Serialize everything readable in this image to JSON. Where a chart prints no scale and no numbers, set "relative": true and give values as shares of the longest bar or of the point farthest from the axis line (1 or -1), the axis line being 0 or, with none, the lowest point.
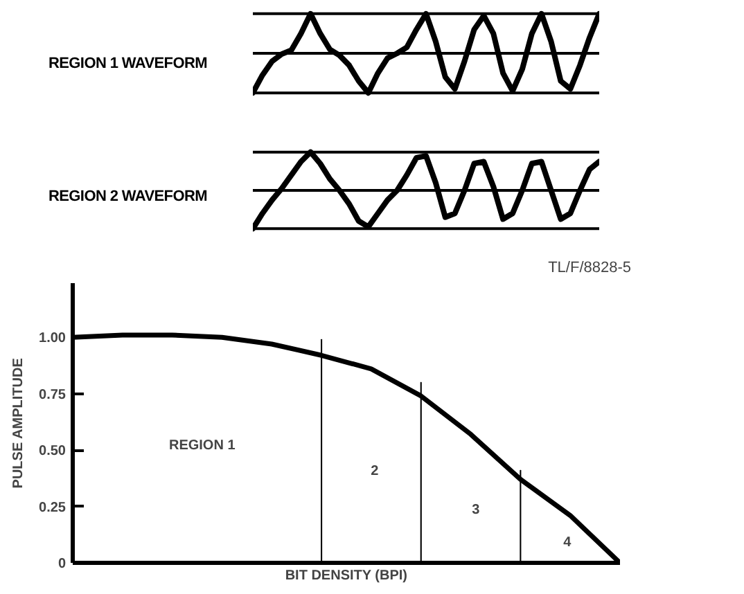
{
  "chart_data": [
    {
      "type": "line",
      "title": "REGION 1 WAVEFORM",
      "relative": true,
      "categories": [
        null,
        null,
        null,
        null,
        null,
        null,
        null,
        null,
        null,
        null,
        null,
        null,
        null,
        null,
        null,
        null,
        null,
        null,
        null,
        null,
        null,
        null,
        null,
        null,
        null,
        null,
        null,
        null,
        null,
        null,
        null,
        null,
        null,
        null,
        null,
        null,
        null
      ],
      "series": [
        {
          "color": "#000000",
          "values": [
            -1.0,
            -0.55,
            -0.2,
            -0.02,
            0.08,
            0.5,
            1.0,
            0.5,
            0.1,
            -0.05,
            -0.3,
            -0.7,
            -1.0,
            -0.5,
            -0.12,
            0.0,
            0.15,
            0.6,
            1.0,
            0.3,
            -0.6,
            -0.9,
            -0.2,
            0.6,
            0.95,
            0.5,
            -0.5,
            -0.95,
            -0.4,
            0.5,
            1.0,
            0.3,
            -0.7,
            -0.9,
            -0.3,
            0.4,
            1.0
          ]
        }
      ],
      "ref_lines": [
        {
          "axis": "y",
          "value": 1,
          "color": "#000000"
        },
        {
          "axis": "y",
          "value": 0,
          "color": "#000000"
        },
        {
          "axis": "y",
          "value": -1,
          "color": "#000000"
        }
      ]
    },
    {
      "type": "line",
      "title": "REGION 2 WAVEFORM",
      "relative": true,
      "categories": [
        null,
        null,
        null,
        null,
        null,
        null,
        null,
        null,
        null,
        null,
        null,
        null,
        null,
        null,
        null,
        null,
        null,
        null,
        null,
        null,
        null,
        null,
        null,
        null,
        null,
        null,
        null,
        null,
        null,
        null,
        null,
        null,
        null,
        null,
        null,
        null,
        null
      ],
      "series": [
        {
          "color": "#000000",
          "values": [
            -1.0,
            -0.6,
            -0.25,
            0.05,
            0.4,
            0.75,
            1.0,
            0.7,
            0.3,
            0.0,
            -0.35,
            -0.8,
            -0.95,
            -0.6,
            -0.25,
            0.0,
            0.4,
            0.85,
            0.9,
            0.2,
            -0.7,
            -0.6,
            0.0,
            0.7,
            0.75,
            0.1,
            -0.75,
            -0.6,
            0.0,
            0.7,
            0.75,
            0.0,
            -0.75,
            -0.6,
            0.0,
            0.55,
            0.75
          ]
        }
      ],
      "ref_lines": [
        {
          "axis": "y",
          "value": 1,
          "color": "#000000"
        },
        {
          "axis": "y",
          "value": 0,
          "color": "#000000"
        },
        {
          "axis": "y",
          "value": -1,
          "color": "#000000"
        }
      ]
    },
    {
      "type": "line",
      "xlabel": "BIT DENSITY (BPI)",
      "ylabel": "PULSE AMPLITUDE",
      "tick_labels": "y",
      "grid": false,
      "categories": [
        null,
        null,
        null,
        null,
        null,
        null,
        null,
        null,
        null,
        null,
        null,
        null
      ],
      "ylim": [
        0,
        1.24
      ],
      "yticks": [
        0,
        0.25,
        {
          "value": 0.5,
          "label": "0.50"
        },
        0.75,
        {
          "value": 1,
          "label": "1.00"
        }
      ],
      "series": [
        {
          "color": "#000000",
          "values": [
            1.0,
            1.01,
            1.01,
            1.0,
            0.97,
            0.92,
            0.86,
            0.74,
            0.57,
            0.37,
            0.21,
            0.0
          ]
        },
        {
          "type": "bar",
          "color": "#000000",
          "values": [
            null,
            null,
            null,
            null,
            null,
            0.99,
            null,
            0.8,
            null,
            0.41,
            null,
            null
          ]
        }
      ],
      "annotations": [
        "REGION 1",
        "2",
        "3",
        "4",
        "TL/F/8828-5"
      ]
    }
  ]
}
